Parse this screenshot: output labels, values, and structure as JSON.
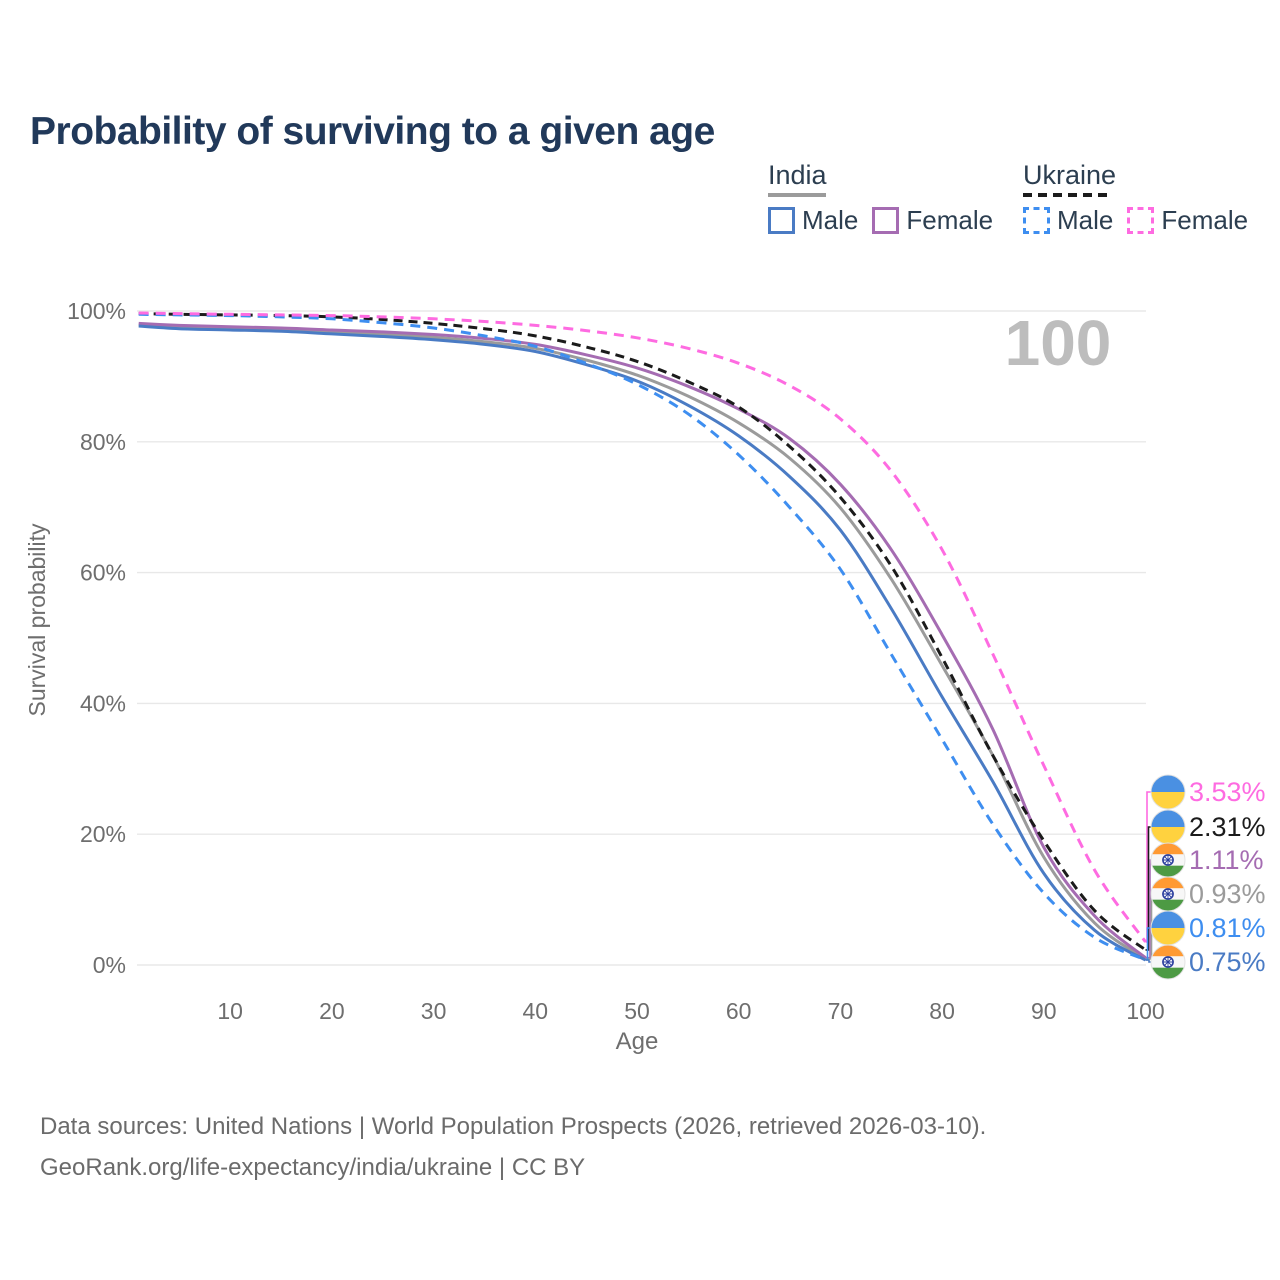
{
  "title": "Probability of surviving to a given age",
  "legend": {
    "groups": [
      {
        "label": "India",
        "entries": [
          {
            "label": "Male"
          },
          {
            "label": "Female"
          }
        ]
      },
      {
        "label": "Ukraine",
        "entries": [
          {
            "label": "Male"
          },
          {
            "label": "Female"
          }
        ]
      }
    ]
  },
  "chart_data": {
    "type": "line",
    "title": "Probability of surviving to a given age",
    "xlabel": "Age",
    "ylabel": "Survival probability",
    "xlim": [
      0,
      100
    ],
    "ylim": [
      0,
      100
    ],
    "grid": "horizontal",
    "legend_position": "top-right",
    "hover_age_label": "100",
    "x_ticks": [
      10,
      20,
      30,
      40,
      50,
      60,
      70,
      80,
      90,
      100
    ],
    "y_ticks": [
      "0%",
      "20%",
      "40%",
      "60%",
      "80%",
      "100%"
    ],
    "y_tick_values": [
      0,
      20,
      40,
      60,
      80,
      100
    ],
    "ages": [
      1,
      5,
      10,
      15,
      20,
      25,
      30,
      35,
      40,
      45,
      50,
      55,
      60,
      65,
      70,
      75,
      80,
      85,
      90,
      95,
      100
    ],
    "series": [
      {
        "name": "India Male",
        "country": "India",
        "sex": "Male",
        "style": "solid",
        "color": "#4a7bc4",
        "dash": false,
        "flag": "in",
        "end_label": "0.75%",
        "values": [
          97.7,
          97.3,
          97.1,
          96.9,
          96.5,
          96.1,
          95.6,
          94.9,
          93.8,
          91.8,
          89.3,
          85.6,
          80.9,
          74.7,
          66.5,
          54.5,
          41.0,
          28.0,
          14.0,
          5.3,
          0.75
        ]
      },
      {
        "name": "India Female",
        "country": "India",
        "sex": "Female",
        "style": "solid",
        "color": "#a56cb2",
        "dash": false,
        "flag": "in",
        "end_label": "1.11%",
        "values": [
          98.1,
          97.8,
          97.6,
          97.4,
          97.1,
          96.8,
          96.4,
          95.8,
          94.9,
          93.3,
          91.3,
          88.5,
          85.0,
          80.5,
          73.5,
          63.5,
          50.5,
          36.0,
          18.0,
          7.5,
          1.11
        ]
      },
      {
        "name": "India Both sexes",
        "country": "India",
        "sex": "Both",
        "style": "solid",
        "color": "#9b9b9b",
        "dash": false,
        "flag": "in",
        "end_label": "0.93%",
        "values": [
          97.9,
          97.5,
          97.3,
          97.1,
          96.8,
          96.4,
          96.0,
          95.3,
          94.3,
          92.5,
          90.2,
          87.0,
          82.9,
          77.5,
          69.9,
          59.0,
          45.8,
          32.0,
          16.5,
          6.4,
          0.93
        ]
      },
      {
        "name": "Ukraine Male",
        "country": "Ukraine",
        "sex": "Male",
        "style": "dashed",
        "color": "#3e8ef0",
        "dash": true,
        "flag": "ua",
        "end_label": "0.81%",
        "values": [
          99.5,
          99.4,
          99.3,
          99.1,
          98.8,
          98.2,
          97.4,
          96.2,
          94.6,
          92.0,
          88.8,
          84.3,
          78.0,
          70.0,
          60.5,
          47.5,
          34.5,
          21.5,
          11.0,
          4.2,
          0.81
        ]
      },
      {
        "name": "Ukraine Female",
        "country": "Ukraine",
        "sex": "Female",
        "style": "dashed",
        "color": "#fe6be1",
        "dash": true,
        "flag": "ua",
        "end_label": "3.53%",
        "values": [
          99.7,
          99.6,
          99.5,
          99.4,
          99.3,
          99.1,
          98.8,
          98.4,
          97.8,
          97.0,
          95.9,
          94.3,
          92.0,
          88.6,
          83.5,
          75.5,
          63.5,
          47.5,
          30.5,
          14.5,
          3.53
        ]
      },
      {
        "name": "Ukraine Both sexes",
        "country": "Ukraine",
        "sex": "Both",
        "style": "dashed",
        "color": "#1b1b1b",
        "dash": true,
        "flag": "ua",
        "end_label": "2.31%",
        "values": [
          99.6,
          99.5,
          99.4,
          99.3,
          99.1,
          98.7,
          98.1,
          97.3,
          96.2,
          94.5,
          92.3,
          89.2,
          85.3,
          79.3,
          71.5,
          61.0,
          47.0,
          32.0,
          19.0,
          8.3,
          2.31
        ]
      }
    ],
    "end_label_order_top_to_bottom": [
      "Ukraine Female",
      "Ukraine Both sexes",
      "India Female",
      "India Both sexes",
      "Ukraine Male",
      "India Male"
    ]
  },
  "flags": {
    "ua_blue": "#4a90e2",
    "ua_yellow": "#ffd23f",
    "in_saffron": "#ff9a33",
    "in_white": "#f7f7f7",
    "in_green": "#4d9a44",
    "in_chakra": "#2b3f9e"
  },
  "colors": {
    "title_text": "#21395a",
    "axis_text": "#6e6e6e",
    "gridline": "#e8e8e8",
    "watermark": "#bdbdbd",
    "legend_text": "#2c3e50",
    "footer_text": "#6b6b6b"
  },
  "footer": {
    "line1": "Data sources: United Nations | World Population Prospects (2026, retrieved 2026-03-10).",
    "line2": "GeoRank.org/life-expectancy/india/ukraine | CC BY"
  }
}
